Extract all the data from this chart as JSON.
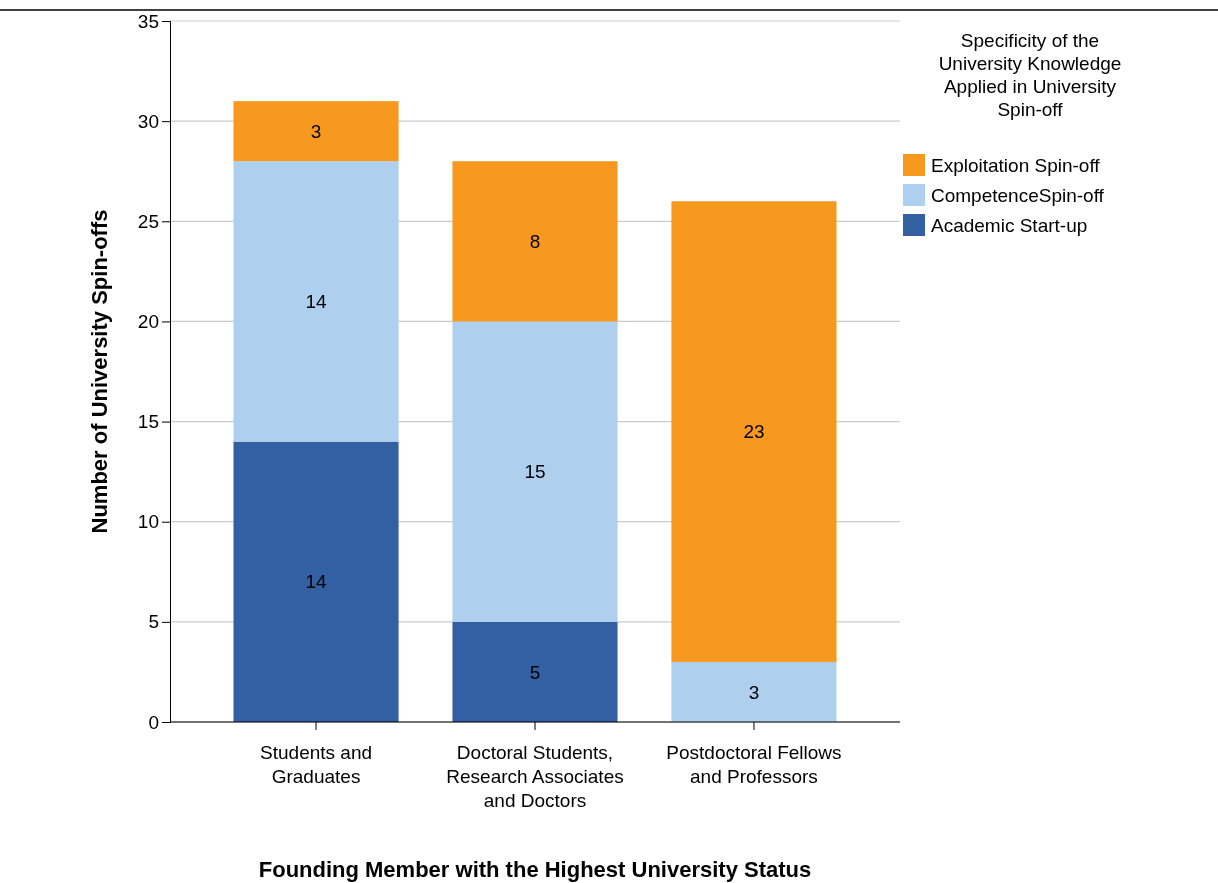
{
  "chart_data": {
    "type": "bar",
    "stacked": true,
    "xlabel": "Founding Member with the Highest University Status",
    "ylabel": "Number of University Spin-offs",
    "legend_title": "Specificity of the University Knowledge Applied in University Spin-off",
    "categories": [
      "Students and Graduates",
      "Doctoral Students, Research Associates and Doctors",
      "Postdoctoral Fellows and Professors"
    ],
    "series": [
      {
        "name": "Academic Start-up",
        "color": "#3360a3",
        "values": [
          14,
          5,
          null
        ]
      },
      {
        "name": "CompetenceSpin-off",
        "color": "#aed0ee",
        "values": [
          14,
          15,
          3
        ]
      },
      {
        "name": "Exploitation Spin-off",
        "color": "#f7991f",
        "values": [
          3,
          8,
          23
        ]
      }
    ],
    "ylim": [
      0,
      35
    ],
    "yticks": [
      0,
      5,
      10,
      15,
      20,
      25,
      30,
      35
    ],
    "grid": "y",
    "legend": "top right",
    "data_labels": true
  }
}
